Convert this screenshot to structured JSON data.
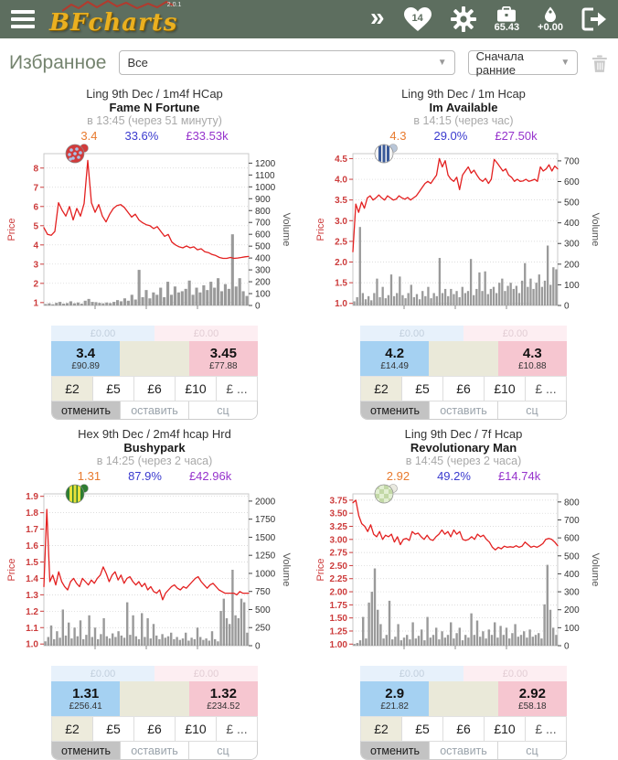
{
  "header": {
    "logo_text": "BFcharts",
    "version": "2.0.1",
    "favorites_count": "14",
    "balance": "65.43",
    "pnl": "+0.00"
  },
  "filter_bar": {
    "label": "Избранное",
    "filter_value": "Все",
    "sort_value": "Сначала ранние"
  },
  "common": {
    "stakes": [
      "£2",
      "£5",
      "£6",
      "£10",
      "£ ..."
    ],
    "actions": {
      "cancel": "отменить",
      "keep": "оставить",
      "sc": "сц"
    },
    "price_axis_label": "Price",
    "volume_axis_label": "Volume"
  },
  "colors": {
    "header_bg": "#5d6e5f",
    "line": "#e32020",
    "bars": "#9a9a9a",
    "price_axis": "#cc3b3b",
    "back_cell": "#a5d1f2",
    "lay_cell": "#f6c6d0",
    "stat_price": "#e87a2e",
    "stat_percent": "#3a3ace",
    "stat_volume": "#9633cc"
  },
  "cards": [
    {
      "race": "Ling 9th Dec / 1m4f HCap",
      "horse": "Fame N Fortune",
      "time_info": "в 13:45 (через 51 минуту)",
      "stats": {
        "price": "3.4",
        "percent": "33.6%",
        "volume": "£33.53k"
      },
      "unmatched": {
        "back": "£0.00",
        "lay": "£0.00"
      },
      "back": {
        "price": "3.4",
        "amount": "£90.89"
      },
      "lay": {
        "price": "3.45",
        "amount": "£77.88"
      },
      "silks": {
        "body": "#d23b3b",
        "pattern": "dots",
        "pattern_color": "#a9c4e8",
        "cap": "#d23b3b"
      },
      "chart": {
        "type": "line+bar",
        "price_ticks": [
          "1",
          "2",
          "3",
          "4",
          "5",
          "6",
          "7",
          "8"
        ],
        "price_tick_values": [
          1,
          2,
          3,
          4,
          5,
          6,
          7,
          8
        ],
        "price_range": [
          0.85,
          8.75
        ],
        "volume_ticks": [
          0,
          100,
          200,
          300,
          400,
          500,
          600,
          700,
          800,
          900,
          1000,
          1100,
          1200
        ],
        "volume_range": [
          0,
          1280
        ],
        "prices": [
          4.9,
          4.55,
          4.5,
          4.7,
          6.2,
          5.8,
          5.5,
          6.0,
          5.3,
          5.9,
          5.5,
          6.15,
          8.4,
          6.2,
          5.7,
          6.1,
          5.5,
          5.2,
          5.6,
          5.9,
          6.05,
          6.1,
          5.95,
          5.7,
          5.45,
          5.6,
          5.3,
          5.15,
          5.05,
          5.0,
          4.85,
          4.95,
          4.7,
          4.45,
          4.55,
          4.15,
          4.0,
          3.9,
          3.85,
          3.95,
          3.85,
          3.9,
          3.75,
          3.8,
          3.65,
          3.6,
          3.5,
          3.45,
          3.35,
          3.3,
          3.3,
          3.35,
          3.3,
          3.32,
          3.35,
          3.38,
          3.4
        ],
        "volumes": [
          12,
          18,
          10,
          22,
          30,
          15,
          20,
          35,
          18,
          25,
          15,
          40,
          55,
          30,
          28,
          22,
          18,
          25,
          20,
          30,
          45,
          35,
          60,
          40,
          90,
          50,
          300,
          70,
          130,
          60,
          110,
          90,
          150,
          70,
          200,
          90,
          160,
          110,
          120,
          140,
          210,
          90,
          150,
          110,
          170,
          130,
          200,
          150,
          230,
          120,
          180,
          140,
          600,
          160,
          230,
          120,
          80
        ]
      }
    },
    {
      "race": "Ling 9th Dec / 1m Hcap",
      "horse": "Im Available",
      "time_info": "в 14:15 (через час)",
      "stats": {
        "price": "4.3",
        "percent": "29.0%",
        "volume": "£27.50k"
      },
      "unmatched": {
        "back": "£0.00",
        "lay": "£0.00"
      },
      "back": {
        "price": "4.2",
        "amount": "£14.49"
      },
      "lay": {
        "price": "4.3",
        "amount": "£10.88"
      },
      "silks": {
        "body": "#f2f2f2",
        "pattern": "stripes",
        "pattern_color": "#3a5a9a",
        "cap": "#b9c6d8"
      },
      "chart": {
        "type": "line+bar",
        "price_ticks": [
          "1.0",
          "1.5",
          "2.0",
          "2.5",
          "3.0",
          "3.5",
          "4.0",
          "4.5"
        ],
        "price_tick_values": [
          1.0,
          1.5,
          2.0,
          2.5,
          3.0,
          3.5,
          4.0,
          4.5
        ],
        "price_range": [
          0.95,
          4.62
        ],
        "volume_ticks": [
          0,
          100,
          200,
          300,
          400,
          500,
          600,
          700
        ],
        "volume_range": [
          0,
          735
        ],
        "prices": [
          2.25,
          3.4,
          3.2,
          3.45,
          3.3,
          3.55,
          3.6,
          3.5,
          3.55,
          3.62,
          3.55,
          3.5,
          3.6,
          3.55,
          3.5,
          3.52,
          3.6,
          3.55,
          3.52,
          3.56,
          3.5,
          3.55,
          3.6,
          3.7,
          3.8,
          3.9,
          3.95,
          3.9,
          4.0,
          4.1,
          4.5,
          4.3,
          4.45,
          4.1,
          4.0,
          3.95,
          4.05,
          3.75,
          4.1,
          4.2,
          4.3,
          4.15,
          4.22,
          4.1,
          4.0,
          3.95,
          4.02,
          3.9,
          4.0,
          4.48,
          4.4,
          4.3,
          4.2,
          4.25,
          4.1,
          4.05,
          3.95,
          4.0,
          3.95,
          3.96,
          4.0,
          3.95,
          3.97,
          4.0,
          3.95,
          4.3,
          4.2,
          4.25,
          4.35,
          4.2,
          4.32,
          4.25
        ],
        "volumes": [
          20,
          40,
          380,
          60,
          30,
          45,
          25,
          60,
          130,
          40,
          90,
          35,
          50,
          150,
          45,
          60,
          140,
          50,
          35,
          60,
          100,
          40,
          55,
          30,
          70,
          45,
          90,
          35,
          60,
          45,
          230,
          60,
          80,
          45,
          80,
          55,
          70,
          40,
          90,
          60,
          70,
          225,
          50,
          80,
          160,
          70,
          165,
          55,
          80,
          90,
          60,
          110,
          130,
          70,
          95,
          110,
          80,
          95,
          60,
          120,
          205,
          90,
          130,
          80,
          110,
          150,
          90,
          120,
          290,
          100,
          185,
          175
        ]
      }
    },
    {
      "race": "Hex 9th Dec / 2m4f hcap Hrd",
      "horse": "Bushypark",
      "time_info": "в 14:25 (через 2 часа)",
      "stats": {
        "price": "1.31",
        "percent": "87.9%",
        "volume": "£42.96k"
      },
      "unmatched": {
        "back": "£0.00",
        "lay": "£0.00"
      },
      "back": {
        "price": "1.31",
        "amount": "£256.41"
      },
      "lay": {
        "price": "1.32",
        "amount": "£234.52"
      },
      "silks": {
        "body": "#2e7d32",
        "pattern": "stripes",
        "pattern_color": "#e8e23a",
        "cap": "#2e7d32"
      },
      "chart": {
        "type": "line+bar",
        "price_ticks": [
          "1.0",
          "1.1",
          "1.2",
          "1.3",
          "1.4",
          "1.5",
          "1.6",
          "1.7",
          "1.8",
          "1.9"
        ],
        "price_tick_values": [
          1.0,
          1.1,
          1.2,
          1.3,
          1.4,
          1.5,
          1.6,
          1.7,
          1.8,
          1.9
        ],
        "price_range": [
          0.99,
          1.915
        ],
        "volume_ticks": [
          0,
          250,
          500,
          750,
          1000,
          1250,
          1500,
          1750,
          2000
        ],
        "volume_range": [
          0,
          2100
        ],
        "prices": [
          1.35,
          1.82,
          1.38,
          1.42,
          1.36,
          1.44,
          1.38,
          1.35,
          1.33,
          1.38,
          1.4,
          1.37,
          1.35,
          1.4,
          1.38,
          1.36,
          1.39,
          1.37,
          1.4,
          1.42,
          1.47,
          1.43,
          1.38,
          1.42,
          1.44,
          1.39,
          1.42,
          1.37,
          1.4,
          1.41,
          1.38,
          1.36,
          1.38,
          1.35,
          1.37,
          1.33,
          1.35,
          1.32,
          1.31,
          1.33,
          1.27,
          1.31,
          1.33,
          1.35,
          1.36,
          1.34,
          1.33,
          1.35,
          1.34,
          1.36,
          1.38,
          1.4,
          1.41,
          1.38,
          1.36,
          1.34,
          1.36,
          1.37,
          1.35,
          1.33,
          1.32,
          1.31,
          1.31,
          1.31,
          1.31,
          1.3,
          1.32,
          1.31,
          1.31,
          1.31
        ],
        "volumes": [
          60,
          120,
          280,
          90,
          200,
          110,
          500,
          140,
          320,
          100,
          250,
          130,
          350,
          90,
          150,
          420,
          120,
          250,
          90,
          160,
          380,
          130,
          100,
          170,
          120,
          200,
          140,
          110,
          600,
          150,
          420,
          130,
          90,
          450,
          120,
          380,
          100,
          300,
          140,
          90,
          160,
          110,
          130,
          180,
          90,
          120,
          80,
          100,
          180,
          70,
          110,
          90,
          250,
          120,
          80,
          100,
          70,
          200,
          90,
          60,
          480,
          650,
          380,
          300,
          1050,
          420,
          380,
          650,
          600,
          180
        ]
      }
    },
    {
      "race": "Ling 9th Dec / 7f Hcap",
      "horse": "Revolutionary Man",
      "time_info": "в 14:45 (через 2 часа)",
      "stats": {
        "price": "2.92",
        "percent": "49.2%",
        "volume": "£14.74k"
      },
      "unmatched": {
        "back": "£0.00",
        "lay": "£0.00"
      },
      "back": {
        "price": "2.9",
        "amount": "£21.82"
      },
      "lay": {
        "price": "2.92",
        "amount": "£58.18"
      },
      "silks": {
        "body": "#e2efd2",
        "pattern": "checks",
        "pattern_color": "#c2d8a6",
        "cap": "#e9e9df"
      },
      "chart": {
        "type": "line+bar",
        "price_ticks": [
          "1.00",
          "1.25",
          "1.50",
          "1.75",
          "2.00",
          "2.25",
          "2.50",
          "2.75",
          "3.00",
          "3.25",
          "3.50",
          "3.75"
        ],
        "price_tick_values": [
          1.0,
          1.25,
          1.5,
          1.75,
          2.0,
          2.25,
          2.5,
          2.75,
          3.0,
          3.25,
          3.5,
          3.75
        ],
        "price_range": [
          0.97,
          3.87
        ],
        "volume_ticks": [
          0,
          100,
          200,
          300,
          400,
          500,
          600,
          700,
          800
        ],
        "volume_range": [
          0,
          845
        ],
        "prices": [
          3.7,
          3.75,
          3.45,
          3.3,
          3.25,
          3.15,
          3.28,
          3.1,
          3.05,
          3.15,
          3.0,
          3.08,
          3.05,
          3.1,
          2.95,
          3.05,
          2.9,
          3.0,
          3.02,
          2.98,
          3.15,
          3.1,
          3.12,
          3.05,
          3.0,
          3.08,
          3.0,
          2.98,
          3.05,
          3.1,
          3.18,
          3.1,
          3.15,
          3.05,
          3.18,
          3.1,
          3.15,
          3.0,
          2.98,
          3.0,
          3.05,
          3.0,
          3.1,
          3.05,
          3.08,
          3.0,
          2.95,
          2.85,
          2.8,
          2.85,
          2.82,
          2.87,
          2.85,
          2.86,
          2.85,
          2.88,
          2.85,
          2.87,
          2.95,
          2.9,
          2.85,
          2.87,
          2.85,
          2.88,
          2.92,
          3.0,
          3.02,
          3.0,
          2.95,
          2.88
        ],
        "volumes": [
          10,
          15,
          30,
          160,
          40,
          240,
          300,
          430,
          200,
          120,
          40,
          60,
          250,
          35,
          50,
          120,
          30,
          45,
          60,
          35,
          130,
          40,
          55,
          90,
          30,
          160,
          45,
          60,
          100,
          35,
          80,
          45,
          60,
          130,
          40,
          70,
          100,
          30,
          60,
          45,
          180,
          60,
          140,
          50,
          80,
          40,
          90,
          60,
          130,
          45,
          110,
          60,
          100,
          40,
          70,
          120,
          50,
          60,
          80,
          45,
          90,
          50,
          60,
          70,
          40,
          230,
          450,
          200,
          100,
          60
        ]
      }
    }
  ]
}
